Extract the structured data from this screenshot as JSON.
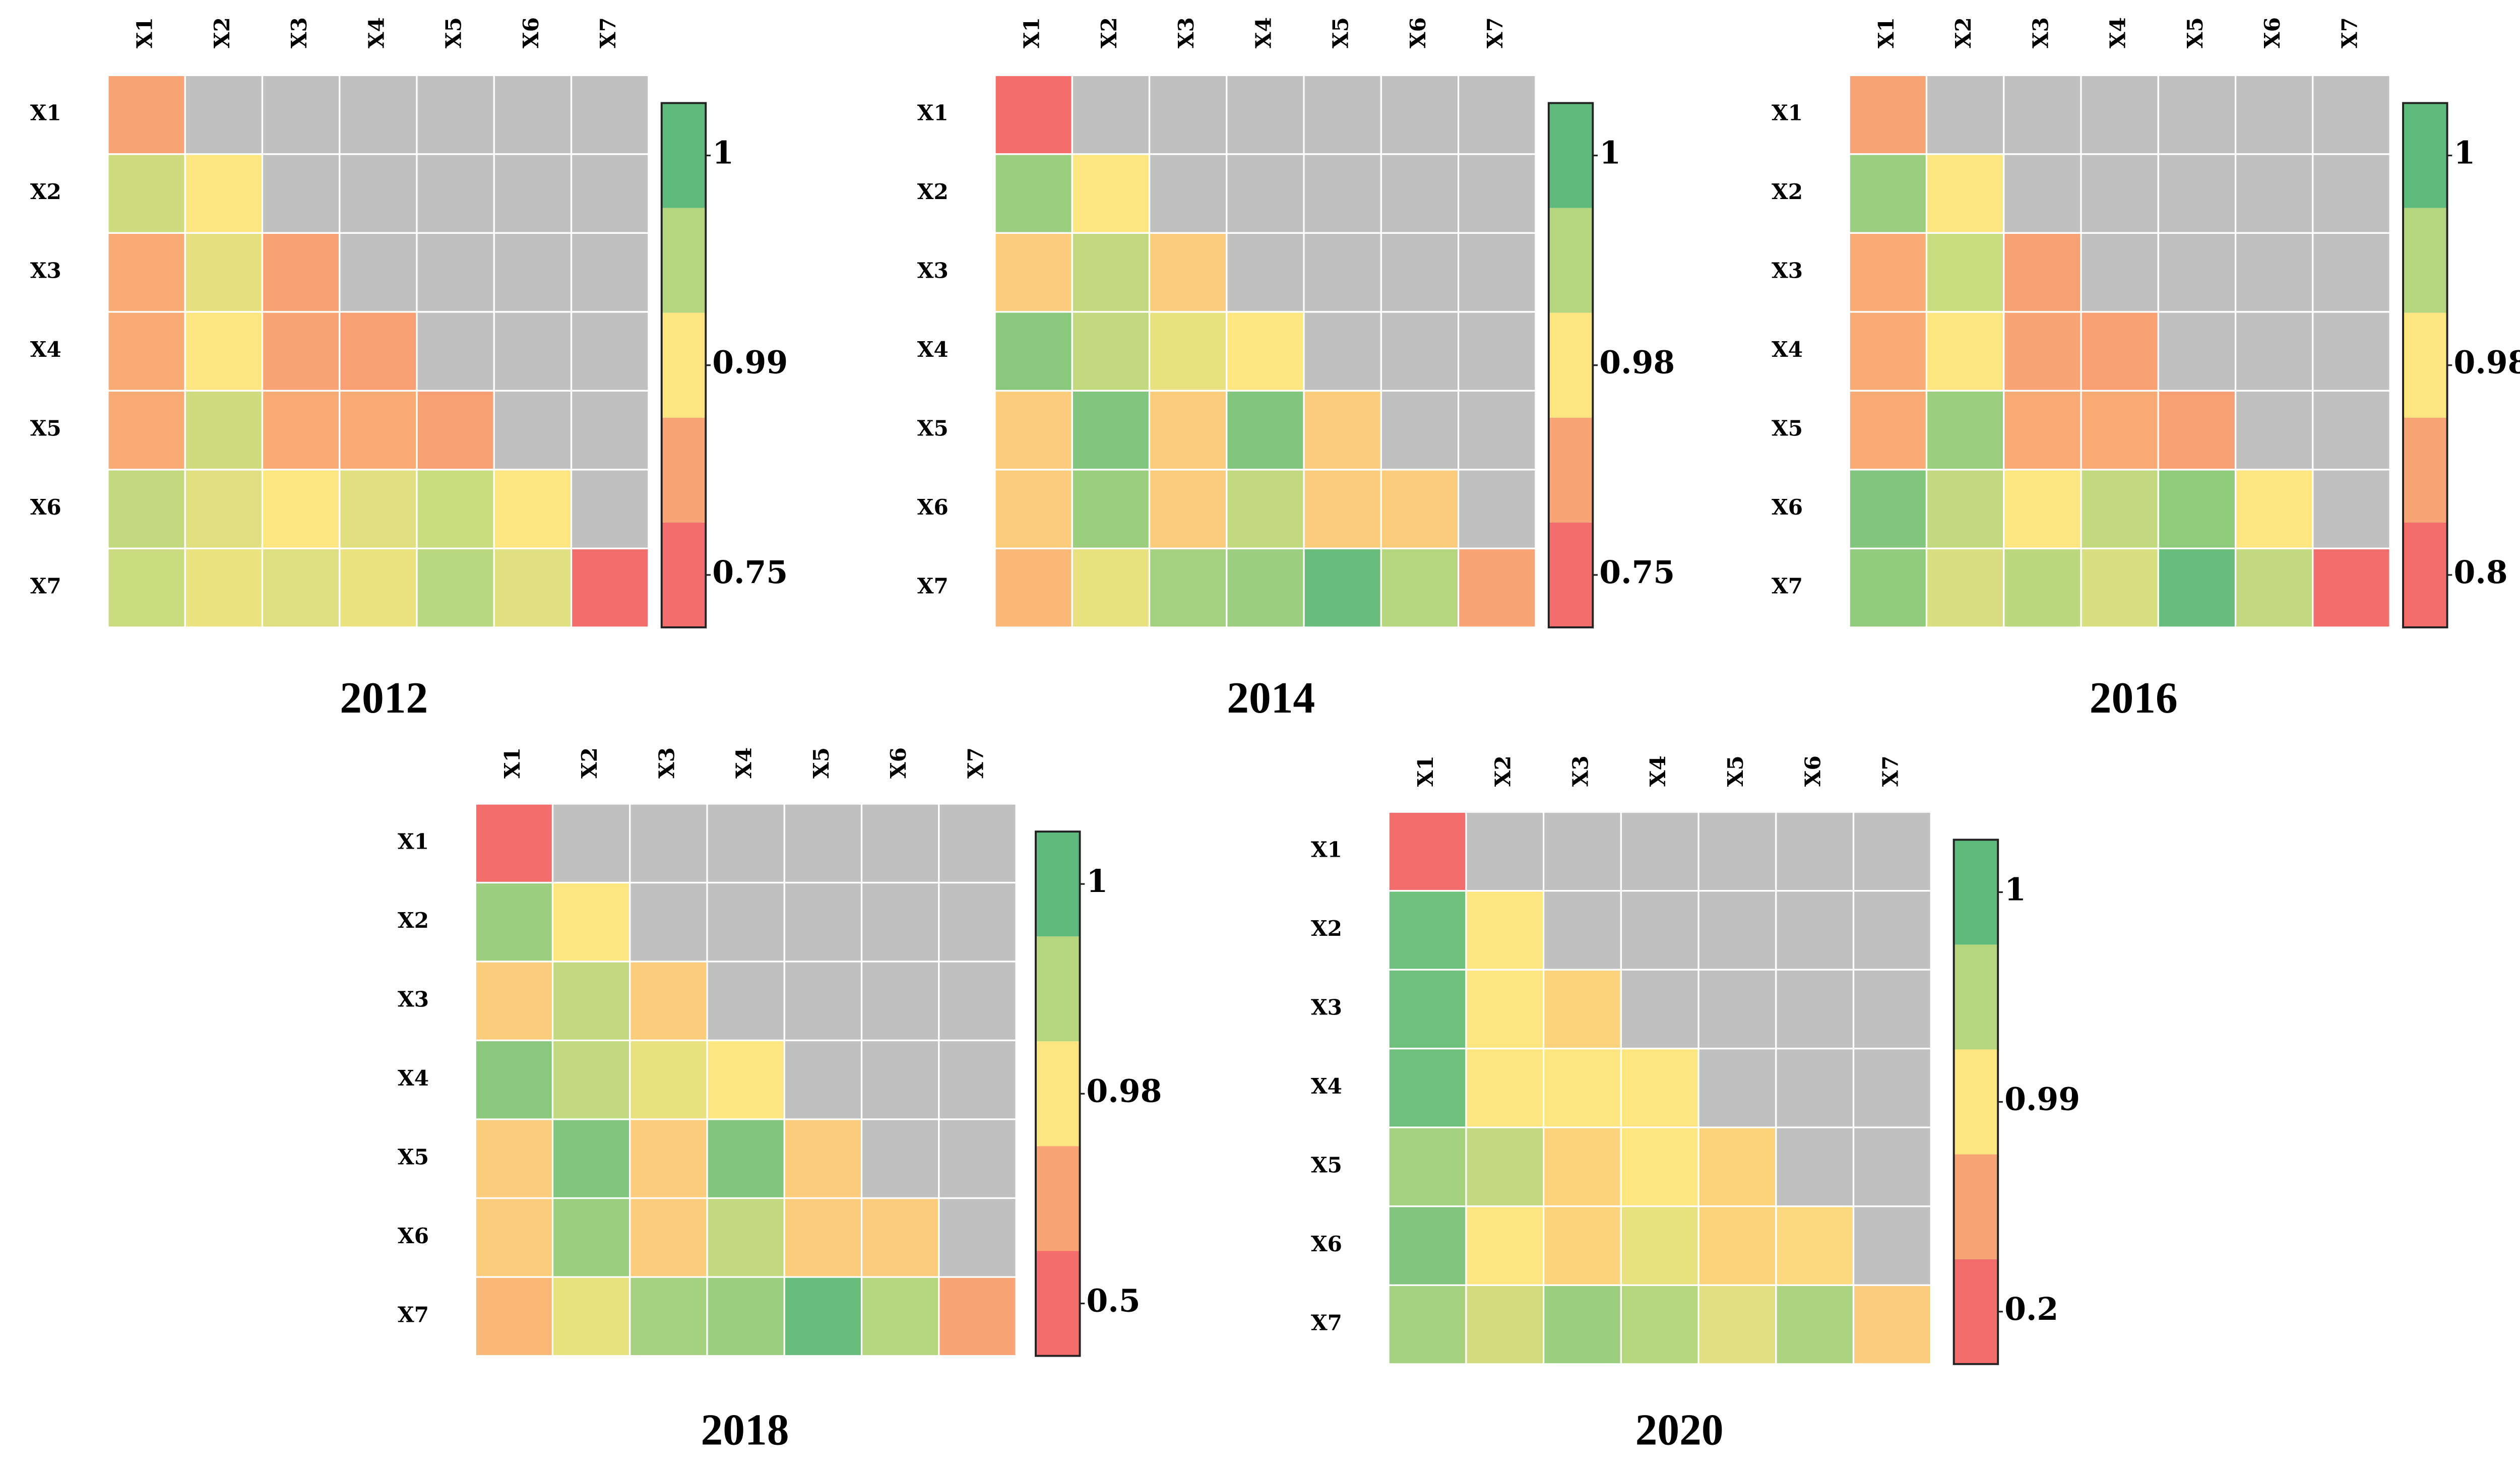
{
  "chart_data": [
    {
      "type": "heatmap",
      "title": "2012",
      "x_categories": [
        "X1",
        "X2",
        "X3",
        "X4",
        "X5",
        "X6",
        "X7"
      ],
      "y_categories": [
        "X1",
        "X2",
        "X3",
        "X4",
        "X5",
        "X6",
        "X7"
      ],
      "values": [
        [
          0.87,
          null,
          null,
          null,
          null,
          null,
          null
        ],
        [
          0.99325,
          0.99,
          null,
          null,
          null,
          null,
          null
        ],
        [
          0.882,
          0.99175,
          0.858,
          null,
          null,
          null,
          null
        ],
        [
          0.882,
          0.99,
          0.87,
          0.858,
          null,
          null,
          null
        ],
        [
          0.882,
          0.99325,
          0.882,
          0.882,
          0.858,
          null,
          null
        ],
        [
          0.994,
          0.992,
          0.99,
          0.992,
          0.9935,
          0.99,
          null
        ],
        [
          0.9935,
          0.99125,
          0.99225,
          0.99125,
          0.99475,
          0.992,
          0.75
        ]
      ],
      "missing_color": "#c0c0c0",
      "colorbar": {
        "colors": [
          "#f46d6d",
          "#f9a475",
          "#fde680",
          "#b5d67f",
          "#5fba7d"
        ],
        "ticks": [
          0.75,
          0.99,
          1
        ]
      }
    },
    {
      "type": "heatmap",
      "title": "2014",
      "x_categories": [
        "X1",
        "X2",
        "X3",
        "X4",
        "X5",
        "X6",
        "X7"
      ],
      "y_categories": [
        "X1",
        "X2",
        "X3",
        "X4",
        "X5",
        "X6",
        "X7"
      ],
      "values": [
        [
          0.75,
          null,
          null,
          null,
          null,
          null,
          null
        ],
        [
          0.993,
          0.98,
          null,
          null,
          null,
          null,
          null
        ],
        [
          0.934,
          0.988,
          0.934,
          null,
          null,
          null,
          null
        ],
        [
          0.995,
          0.988,
          0.983,
          0.98,
          null,
          null,
          null
        ],
        [
          0.934,
          0.996,
          0.934,
          0.996,
          0.934,
          null,
          null
        ],
        [
          0.934,
          0.993,
          0.934,
          0.988,
          0.934,
          0.934,
          null
        ],
        [
          0.8995,
          0.983,
          0.992,
          0.993,
          0.999,
          0.99,
          0.865
        ]
      ],
      "missing_color": "#c0c0c0",
      "colorbar": {
        "colors": [
          "#f46d6d",
          "#f9a475",
          "#fde680",
          "#b5d67f",
          "#5fba7d"
        ],
        "ticks": [
          0.75,
          0.98,
          1
        ]
      }
    },
    {
      "type": "heatmap",
      "title": "2016",
      "x_categories": [
        "X1",
        "X2",
        "X3",
        "X4",
        "X5",
        "X6",
        "X7"
      ],
      "y_categories": [
        "X1",
        "X2",
        "X3",
        "X4",
        "X5",
        "X6",
        "X7"
      ],
      "values": [
        [
          0.89,
          null,
          null,
          null,
          null,
          null,
          null
        ],
        [
          0.993,
          0.98,
          null,
          null,
          null,
          null,
          null
        ],
        [
          0.899,
          0.987,
          0.881,
          null,
          null,
          null,
          null
        ],
        [
          0.899,
          0.98,
          0.89,
          0.881,
          null,
          null,
          null
        ],
        [
          0.899,
          0.993,
          0.899,
          0.899,
          0.881,
          null,
          null
        ],
        [
          0.996,
          0.988,
          0.98,
          0.988,
          0.994,
          0.98,
          null
        ],
        [
          0.994,
          0.985,
          0.989,
          0.985,
          0.999,
          0.988,
          0.8
        ]
      ],
      "missing_color": "#c0c0c0",
      "colorbar": {
        "colors": [
          "#f46d6d",
          "#f9a475",
          "#fde680",
          "#b5d67f",
          "#5fba7d"
        ],
        "ticks": [
          0.8,
          0.98,
          1
        ]
      }
    },
    {
      "type": "heatmap",
      "title": "2018",
      "x_categories": [
        "X1",
        "X2",
        "X3",
        "X4",
        "X5",
        "X6",
        "X7"
      ],
      "y_categories": [
        "X1",
        "X2",
        "X3",
        "X4",
        "X5",
        "X6",
        "X7"
      ],
      "values": [
        [
          0.5,
          null,
          null,
          null,
          null,
          null,
          null
        ],
        [
          0.993,
          0.98,
          null,
          null,
          null,
          null,
          null
        ],
        [
          0.884,
          0.988,
          0.884,
          null,
          null,
          null,
          null
        ],
        [
          0.995,
          0.988,
          0.983,
          0.98,
          null,
          null,
          null
        ],
        [
          0.884,
          0.996,
          0.884,
          0.996,
          0.884,
          null,
          null
        ],
        [
          0.884,
          0.993,
          0.884,
          0.988,
          0.884,
          0.884,
          null
        ],
        [
          0.812,
          0.983,
          0.992,
          0.993,
          0.999,
          0.99,
          0.74
        ]
      ],
      "missing_color": "#c0c0c0",
      "colorbar": {
        "colors": [
          "#f46d6d",
          "#f9a475",
          "#fde680",
          "#b5d67f",
          "#5fba7d"
        ],
        "ticks": [
          0.5,
          0.98,
          1
        ]
      }
    },
    {
      "type": "heatmap",
      "title": "2020",
      "x_categories": [
        "X1",
        "X2",
        "X3",
        "X4",
        "X5",
        "X6",
        "X7"
      ],
      "y_categories": [
        "X1",
        "X2",
        "X3",
        "X4",
        "X5",
        "X6",
        "X7"
      ],
      "values": [
        [
          0.2,
          null,
          null,
          null,
          null,
          null,
          null
        ],
        [
          0.999,
          0.99,
          null,
          null,
          null,
          null,
          null
        ],
        [
          0.999,
          0.99,
          0.8715,
          null,
          null,
          null,
          null
        ],
        [
          0.999,
          0.99,
          0.99,
          0.99,
          null,
          null,
          null
        ],
        [
          0.996,
          0.994,
          0.8715,
          0.99,
          0.8715,
          null,
          null
        ],
        [
          0.998,
          0.99,
          0.8715,
          0.9915,
          0.8715,
          0.911,
          null
        ],
        [
          0.996,
          0.993,
          0.9965,
          0.995,
          0.992,
          0.9955,
          0.832
        ]
      ],
      "missing_color": "#c0c0c0",
      "colorbar": {
        "colors": [
          "#f46d6d",
          "#f9a475",
          "#fde680",
          "#b5d67f",
          "#5fba7d"
        ],
        "ticks": [
          0.2,
          0.99,
          1
        ]
      }
    }
  ]
}
